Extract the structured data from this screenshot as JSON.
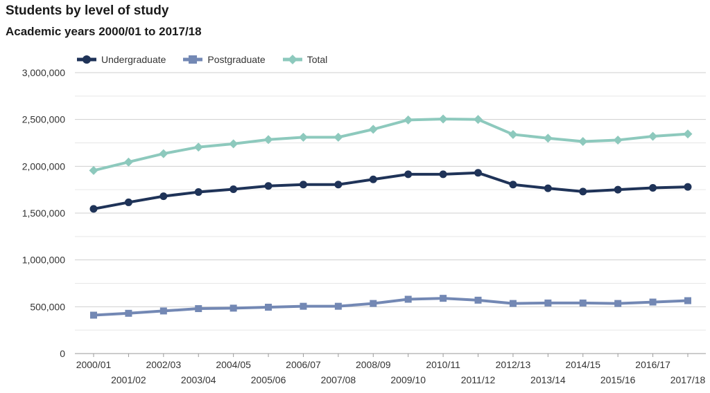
{
  "chart_data": {
    "type": "line",
    "title": "Students by level of study",
    "subtitle": "Academic years 2000/01 to 2017/18",
    "categories": [
      "2000/01",
      "2001/02",
      "2002/03",
      "2003/04",
      "2004/05",
      "2005/06",
      "2006/07",
      "2007/08",
      "2008/09",
      "2009/10",
      "2010/11",
      "2011/12",
      "2012/13",
      "2013/14",
      "2014/15",
      "2015/16",
      "2016/17",
      "2017/18"
    ],
    "series": [
      {
        "name": "Undergraduate",
        "color": "#1f3358",
        "marker": "circle",
        "values": [
          1545000,
          1615000,
          1680000,
          1725000,
          1755000,
          1790000,
          1805000,
          1805000,
          1860000,
          1915000,
          1915000,
          1930000,
          1805000,
          1765000,
          1730000,
          1750000,
          1770000,
          1780000
        ]
      },
      {
        "name": "Postgraduate",
        "color": "#7388b4",
        "marker": "square",
        "values": [
          410000,
          430000,
          455000,
          480000,
          485000,
          495000,
          505000,
          505000,
          535000,
          580000,
          590000,
          570000,
          535000,
          540000,
          540000,
          535000,
          550000,
          565000
        ]
      },
      {
        "name": "Total",
        "color": "#8dc9bd",
        "marker": "diamond",
        "values": [
          1955000,
          2045000,
          2135000,
          2205000,
          2240000,
          2285000,
          2310000,
          2310000,
          2395000,
          2495000,
          2505000,
          2500000,
          2340000,
          2300000,
          2265000,
          2280000,
          2320000,
          2345000
        ]
      }
    ],
    "yticks": [
      "0",
      "500,000",
      "1,000,000",
      "1,500,000",
      "2,000,000",
      "2,500,000",
      "3,000,000"
    ],
    "ylim": [
      0,
      3000000
    ],
    "grid": true,
    "legend_position": "top-left"
  }
}
